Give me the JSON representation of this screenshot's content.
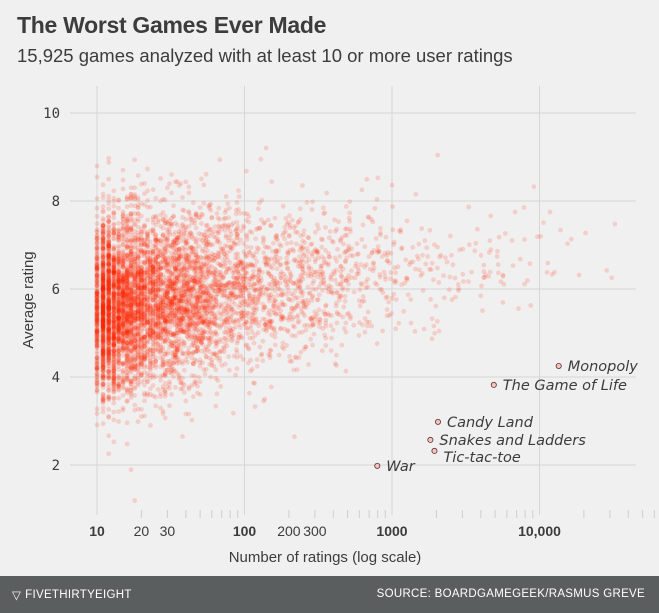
{
  "title": "The Worst Games Ever Made",
  "subtitle": "15,925 games analyzed with at least 10 or more user ratings",
  "footer": {
    "brand": "FIVETHIRTYEIGHT",
    "source": "SOURCE: BOARDGAMEGEEK/RASMUS GREVE"
  },
  "colors": {
    "background": "#f0f0f0",
    "points": "#ff2700",
    "grid": "#d6d6d6",
    "footer": "#5b5e5f",
    "text": "#3c3c3c"
  },
  "chart_data": {
    "type": "scatter",
    "xlabel": "Number of ratings (log scale)",
    "ylabel": "Average rating",
    "x_scale": "log",
    "xlim": [
      10,
      35000
    ],
    "ylim": [
      0.9,
      10.6
    ],
    "grid": true,
    "x_ticks": [
      {
        "value": 10,
        "label": "10",
        "bold": true
      },
      {
        "value": 20,
        "label": "20",
        "bold": false
      },
      {
        "value": 30,
        "label": "30",
        "bold": false
      },
      {
        "value": 100,
        "label": "100",
        "bold": true
      },
      {
        "value": 200,
        "label": "200",
        "bold": false
      },
      {
        "value": 300,
        "label": "300",
        "bold": false
      },
      {
        "value": 1000,
        "label": "1000",
        "bold": true
      },
      {
        "value": 10000,
        "label": "10,000",
        "bold": true
      }
    ],
    "y_ticks": [
      {
        "value": 10,
        "label": "10"
      },
      {
        "value": 8,
        "label": "8"
      },
      {
        "value": 6,
        "label": "6"
      },
      {
        "value": 4,
        "label": "4"
      },
      {
        "value": 2,
        "label": "2"
      }
    ],
    "total_games": 15925,
    "highlighted": [
      {
        "name": "Monopoly",
        "x": 13500,
        "y": 4.25
      },
      {
        "name": "The Game of Life",
        "x": 4900,
        "y": 3.82
      },
      {
        "name": "Candy Land",
        "x": 2050,
        "y": 2.98
      },
      {
        "name": "Snakes and Ladders",
        "x": 1820,
        "y": 2.57
      },
      {
        "name": "Tic-tac-toe",
        "x": 1940,
        "y": 2.32
      },
      {
        "name": "War",
        "x": 795,
        "y": 1.98
      }
    ]
  }
}
